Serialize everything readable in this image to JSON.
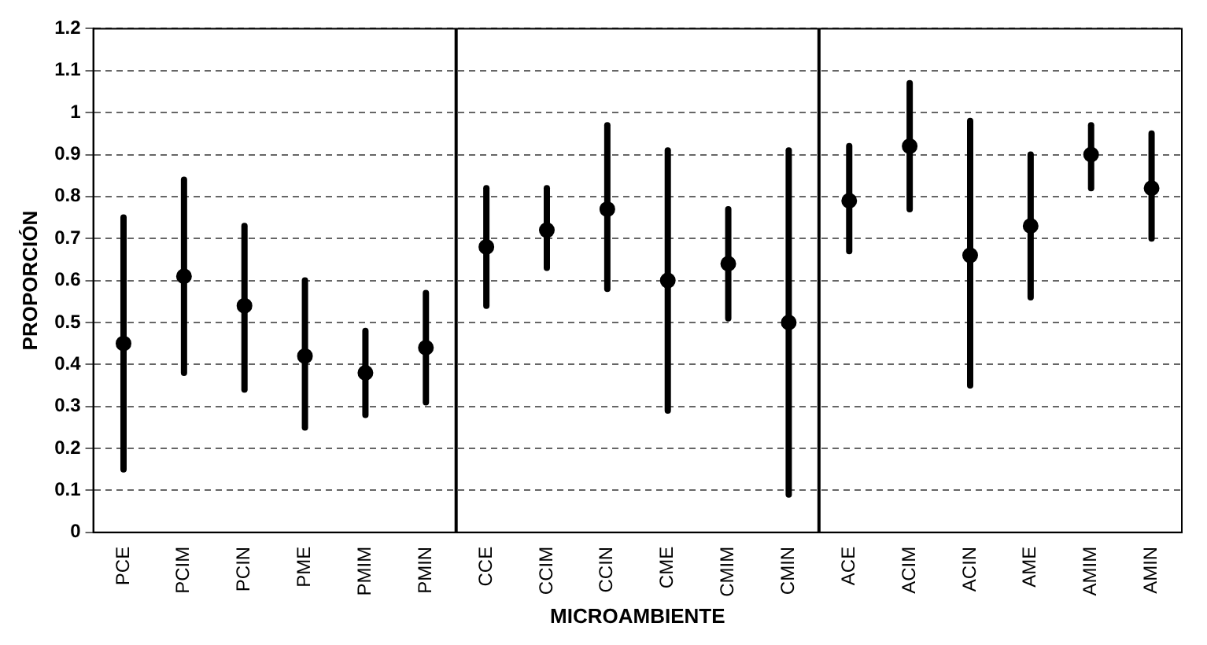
{
  "chart_data": {
    "type": "scatter",
    "xlabel": "MICROAMBIENTE",
    "ylabel": "PROPORCIÓN",
    "categories": [
      "PCE",
      "PCIM",
      "PCIN",
      "PME",
      "PMIM",
      "PMIN",
      "CCE",
      "CCIM",
      "CCIN",
      "CME",
      "CMIM",
      "CMIN",
      "ACE",
      "ACIM",
      "ACIN",
      "AME",
      "AMIM",
      "AMIN"
    ],
    "series": [
      {
        "color": "#000000",
        "values": [
          0.45,
          0.61,
          0.54,
          0.42,
          0.38,
          0.44,
          0.68,
          0.72,
          0.77,
          0.6,
          0.64,
          0.5,
          0.79,
          0.92,
          0.66,
          0.73,
          0.9,
          0.82
        ],
        "errors": [
          [
            0.15,
            0.75
          ],
          [
            0.38,
            0.84
          ],
          [
            0.34,
            0.73
          ],
          [
            0.25,
            0.6
          ],
          [
            0.28,
            0.48
          ],
          [
            0.31,
            0.57
          ],
          [
            0.54,
            0.82
          ],
          [
            0.63,
            0.82
          ],
          [
            0.58,
            0.97
          ],
          [
            0.29,
            0.91
          ],
          [
            0.51,
            0.77
          ],
          [
            0.09,
            0.91
          ],
          [
            0.67,
            0.92
          ],
          [
            0.77,
            1.07
          ],
          [
            0.35,
            0.98
          ],
          [
            0.56,
            0.9
          ],
          [
            0.82,
            0.97
          ],
          [
            0.7,
            0.95
          ]
        ]
      }
    ],
    "ylim": [
      0,
      1.2
    ],
    "yticks": [
      0,
      0.1,
      0.2,
      0.3,
      0.4,
      0.5,
      0.6,
      0.7,
      0.8,
      0.9,
      1,
      1.1,
      1.2
    ],
    "grid": "y",
    "marker": "circle",
    "legend": false
  }
}
